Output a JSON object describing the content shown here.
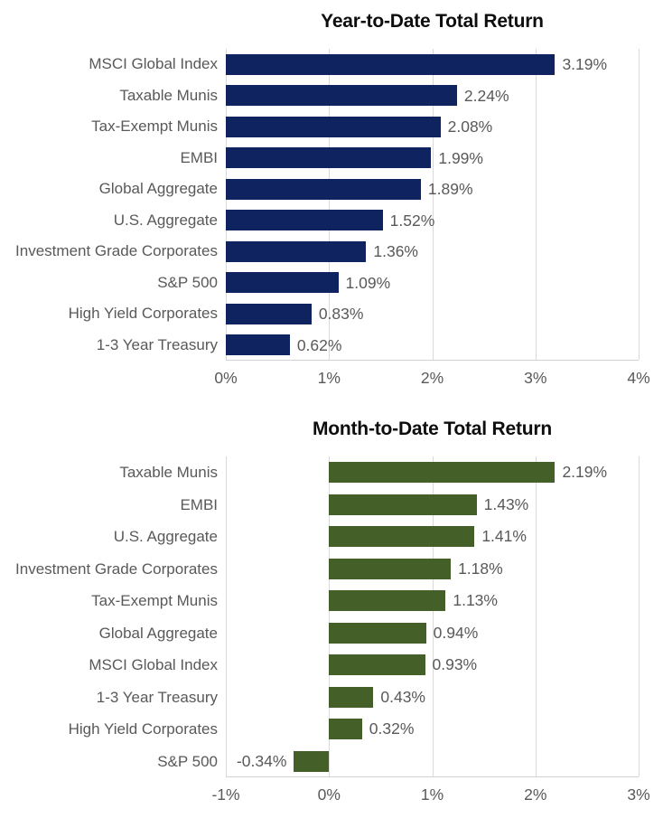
{
  "chart_data": [
    {
      "type": "bar",
      "orientation": "horizontal",
      "title": "Year-to-Date Total Return",
      "bar_color": "#0f2360",
      "grid_color": "#d9d9d9",
      "text_color": "#595959",
      "categories": [
        "MSCI Global Index",
        "Taxable Munis",
        "Tax-Exempt Munis",
        "EMBI",
        "Global Aggregate",
        "U.S. Aggregate",
        "Investment Grade Corporates",
        "S&P 500",
        "High Yield Corporates",
        "1-3 Year Treasury"
      ],
      "values": [
        3.19,
        2.24,
        2.08,
        1.99,
        1.89,
        1.52,
        1.36,
        1.09,
        0.83,
        0.62
      ],
      "value_labels": [
        "3.19%",
        "2.24%",
        "2.08%",
        "1.99%",
        "1.89%",
        "1.52%",
        "1.36%",
        "1.09%",
        "0.83%",
        "0.62%"
      ],
      "xlim": [
        0,
        4
      ],
      "x_ticks": [
        {
          "value": 0,
          "label": "0%"
        },
        {
          "value": 1,
          "label": "1%"
        },
        {
          "value": 2,
          "label": "2%"
        },
        {
          "value": 3,
          "label": "3%"
        },
        {
          "value": 4,
          "label": "4%"
        }
      ],
      "grid": true,
      "legend": false
    },
    {
      "type": "bar",
      "orientation": "horizontal",
      "title": "Month-to-Date Total Return",
      "bar_color": "#445f28",
      "grid_color": "#d9d9d9",
      "text_color": "#595959",
      "categories": [
        "Taxable Munis",
        "EMBI",
        "U.S. Aggregate",
        "Investment Grade Corporates",
        "Tax-Exempt Munis",
        "Global Aggregate",
        "MSCI Global Index",
        "1-3 Year Treasury",
        "High Yield Corporates",
        "S&P 500"
      ],
      "values": [
        2.19,
        1.43,
        1.41,
        1.18,
        1.13,
        0.94,
        0.93,
        0.43,
        0.32,
        -0.34
      ],
      "value_labels": [
        "2.19%",
        "1.43%",
        "1.41%",
        "1.18%",
        "1.13%",
        "0.94%",
        "0.93%",
        "0.43%",
        "0.32%",
        "-0.34%"
      ],
      "xlim": [
        -1,
        3
      ],
      "x_ticks": [
        {
          "value": -1,
          "label": "-1%"
        },
        {
          "value": 0,
          "label": "0%"
        },
        {
          "value": 1,
          "label": "1%"
        },
        {
          "value": 2,
          "label": "2%"
        },
        {
          "value": 3,
          "label": "3%"
        }
      ],
      "grid": true,
      "legend": false
    }
  ]
}
